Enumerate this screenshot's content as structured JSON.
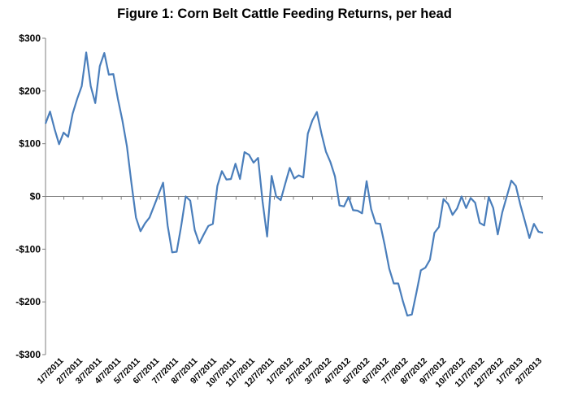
{
  "chart_data": {
    "type": "line",
    "title": "Figure 1: Corn Belt Cattle Feeding Returns, per head",
    "xlabel": "",
    "ylabel": "",
    "ylim": [
      -300,
      300
    ],
    "yticks": [
      300,
      200,
      100,
      0,
      -100,
      -200,
      -300
    ],
    "ytick_labels": [
      "$300",
      "$200",
      "$100",
      "$0",
      "-$100",
      "-$200",
      "-$300"
    ],
    "xtick_labels": [
      "1/7/2011",
      "2/7/2011",
      "3/7/2011",
      "4/7/2011",
      "5/7/2011",
      "6/7/2011",
      "7/7/2011",
      "8/7/2011",
      "9/7/2011",
      "10/7/2011",
      "11/7/2011",
      "12/7/2011",
      "1/7/2012",
      "2/7/2012",
      "3/7/2012",
      "4/7/2012",
      "5/7/2012",
      "6/7/2012",
      "7/7/2012",
      "8/7/2012",
      "9/7/2012",
      "10/7/2012",
      "11/7/2012",
      "12/7/2012",
      "1/7/2013",
      "2/7/2013"
    ],
    "grid": false,
    "legend": "none",
    "line_color": "#4a7ebb",
    "series": [
      {
        "values": [
          138,
          161,
          128,
          99,
          121,
          113,
          157,
          185,
          209,
          273,
          209,
          177,
          247,
          272,
          231,
          232,
          185,
          144,
          95,
          25,
          -40,
          -66,
          -51,
          -40,
          -18,
          4,
          26,
          -55,
          -106,
          -105,
          -56,
          0,
          -8,
          -64,
          -89,
          -72,
          -56,
          -52,
          20,
          48,
          32,
          33,
          62,
          33,
          84,
          79,
          64,
          73,
          -10,
          -76,
          39,
          0,
          -7,
          24,
          54,
          34,
          40,
          36,
          119,
          144,
          160,
          120,
          85,
          65,
          38,
          -17,
          -19,
          -1,
          -26,
          -27,
          -32,
          29,
          -24,
          -51,
          -52,
          -92,
          -137,
          -165,
          -165,
          -198,
          -226,
          -224,
          -183,
          -140,
          -135,
          -120,
          -69,
          -58,
          -5,
          -14,
          -35,
          -23,
          0,
          -22,
          -3,
          -12,
          -50,
          -55,
          -1,
          -22,
          -72,
          -30,
          0,
          30,
          20,
          -16,
          -47,
          -79,
          -52,
          -67,
          -69
        ]
      }
    ]
  }
}
